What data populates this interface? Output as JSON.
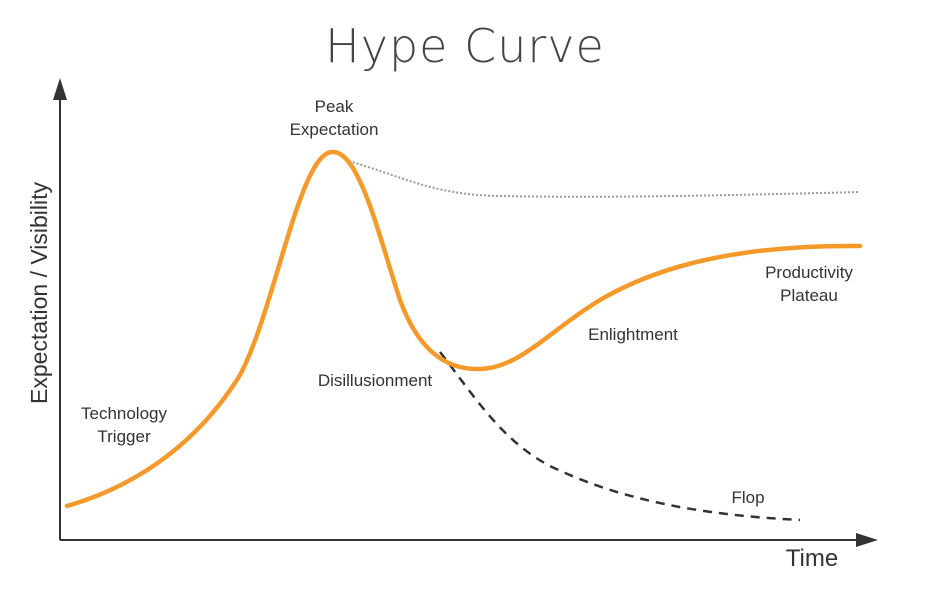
{
  "title": "Hype Curve",
  "axes": {
    "y_label": "Expectation / Visibility",
    "x_label": "Time"
  },
  "phases": {
    "peak": {
      "line1": "Peak",
      "line2": "Expectation"
    },
    "technology_trigger": {
      "line1": "Technology",
      "line2": "Trigger"
    },
    "disillusionment": "Disillusionment",
    "enlightment": "Enlightment",
    "productivity_plateau": {
      "line1": "Productivity",
      "line2": "Plateau"
    },
    "flop": "Flop"
  },
  "colors": {
    "hype_curve": "#f39a2b",
    "dotted_curve": "#999999",
    "flop_curve": "#333333",
    "axes": "#333333",
    "text": "#333333"
  }
}
